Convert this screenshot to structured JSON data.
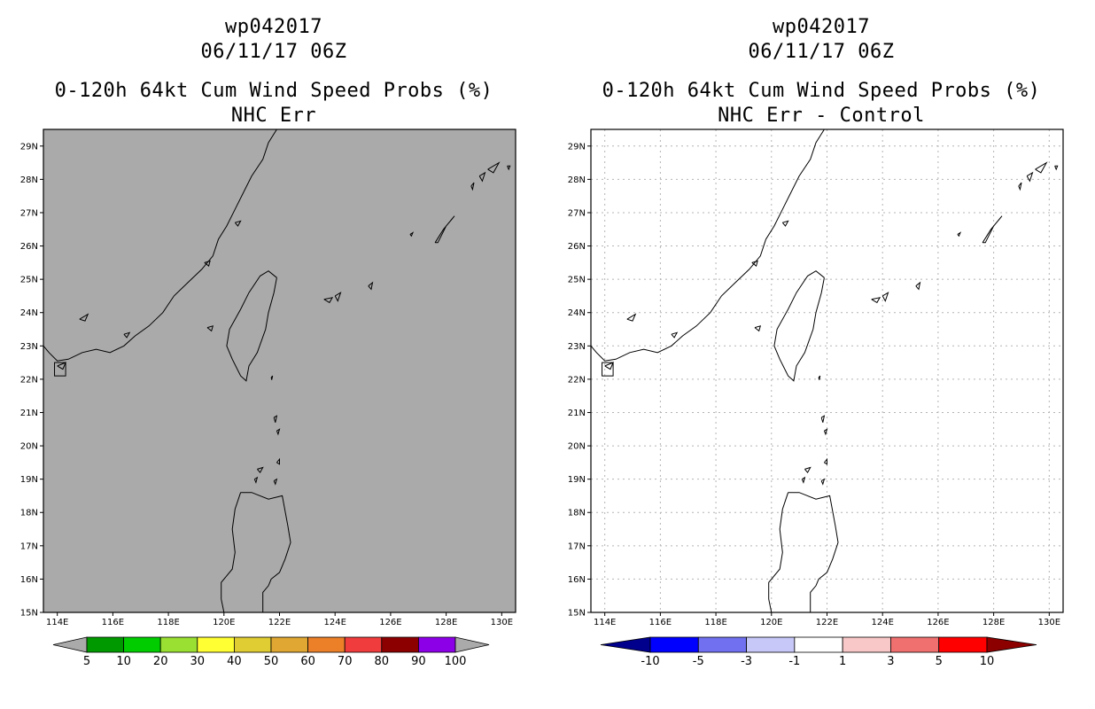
{
  "panels": [
    {
      "id": "left",
      "title_line1": "wp042017",
      "title_line2": "06/11/17 06Z",
      "title_line3": "0-120h 64kt Cum Wind Speed Probs (%)",
      "title_line4": "NHC Err",
      "map_background": "#aaaaaa",
      "gridlines": false,
      "colorbar": {
        "colors": [
          "#aaaaaa",
          "#009900",
          "#00cc00",
          "#99e033",
          "#ffff33",
          "#e0cc33",
          "#e0a833",
          "#ec8029",
          "#f03c3c",
          "#8c0000",
          "#8c00e8",
          "#aaaaaa"
        ],
        "labels": [
          "5",
          "10",
          "20",
          "30",
          "40",
          "50",
          "60",
          "70",
          "80",
          "90",
          "100"
        ]
      }
    },
    {
      "id": "right",
      "title_line1": "wp042017",
      "title_line2": "06/11/17 06Z",
      "title_line3": "0-120h 64kt Cum Wind Speed Probs (%)",
      "title_line4": "NHC Err - Control",
      "map_background": "#ffffff",
      "gridlines": true,
      "colorbar": {
        "colors": [
          "#00008c",
          "#0000ff",
          "#7070f0",
          "#c8c8f8",
          "#ffffff",
          "#f8c8c8",
          "#f07070",
          "#ff0000",
          "#8c0000"
        ],
        "labels": [
          "-10",
          "-5",
          "-3",
          "-1",
          "1",
          "3",
          "5",
          "10"
        ]
      }
    }
  ],
  "map": {
    "lon_range": [
      113.5,
      130.5
    ],
    "lat_range": [
      15,
      29.5
    ],
    "lon_ticks": [
      "114E",
      "116E",
      "118E",
      "120E",
      "122E",
      "124E",
      "126E",
      "128E",
      "130E"
    ],
    "lat_ticks": [
      "15N",
      "16N",
      "17N",
      "18N",
      "19N",
      "20N",
      "21N",
      "22N",
      "23N",
      "24N",
      "25N",
      "26N",
      "27N",
      "28N",
      "29N"
    ]
  }
}
